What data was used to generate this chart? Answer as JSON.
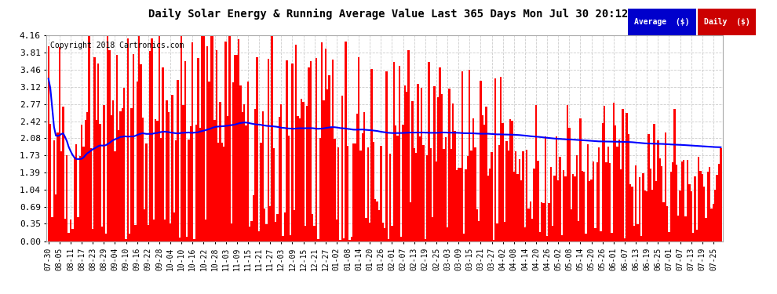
{
  "title": "Daily Solar Energy & Running Average Value Last 365 Days Mon Jul 30 20:12",
  "copyright": "Copyright 2018 Cartronics.com",
  "bar_color": "#ff0000",
  "avg_line_color": "#0000ff",
  "bg_color": "#ffffff",
  "plot_bg_color": "#ffffff",
  "grid_color": "#cccccc",
  "ylim": [
    0.0,
    4.16
  ],
  "yticks": [
    0.0,
    0.35,
    0.69,
    1.04,
    1.39,
    1.73,
    2.08,
    2.42,
    2.77,
    3.12,
    3.46,
    3.81,
    4.16
  ],
  "legend_avg_color": "#0000cc",
  "legend_daily_color": "#cc0000",
  "legend_text_color": "#ffffff",
  "n_bars": 365,
  "x_tick_labels": [
    "07-30",
    "08-05",
    "08-11",
    "08-17",
    "08-23",
    "08-29",
    "09-04",
    "09-10",
    "09-16",
    "09-22",
    "09-28",
    "10-04",
    "10-10",
    "10-16",
    "10-22",
    "10-28",
    "11-03",
    "11-09",
    "11-15",
    "11-21",
    "11-27",
    "12-03",
    "12-09",
    "12-15",
    "12-21",
    "12-27",
    "01-02",
    "01-08",
    "01-14",
    "01-20",
    "01-26",
    "02-01",
    "02-07",
    "02-13",
    "02-19",
    "02-25",
    "03-03",
    "03-09",
    "03-15",
    "03-21",
    "03-27",
    "04-02",
    "04-08",
    "04-14",
    "04-20",
    "04-26",
    "05-02",
    "05-08",
    "05-14",
    "05-20",
    "05-26",
    "06-01",
    "06-07",
    "06-13",
    "06-19",
    "06-25",
    "07-01",
    "07-07",
    "07-13",
    "07-19",
    "07-25"
  ],
  "x_tick_positions": [
    0,
    6,
    12,
    18,
    24,
    30,
    36,
    42,
    48,
    54,
    60,
    66,
    72,
    78,
    84,
    90,
    96,
    102,
    108,
    114,
    120,
    126,
    132,
    138,
    144,
    150,
    156,
    162,
    168,
    174,
    180,
    186,
    192,
    198,
    204,
    210,
    216,
    222,
    228,
    234,
    240,
    246,
    252,
    258,
    264,
    270,
    276,
    282,
    288,
    294,
    300,
    306,
    312,
    318,
    324,
    330,
    336,
    342,
    348,
    354,
    360
  ]
}
